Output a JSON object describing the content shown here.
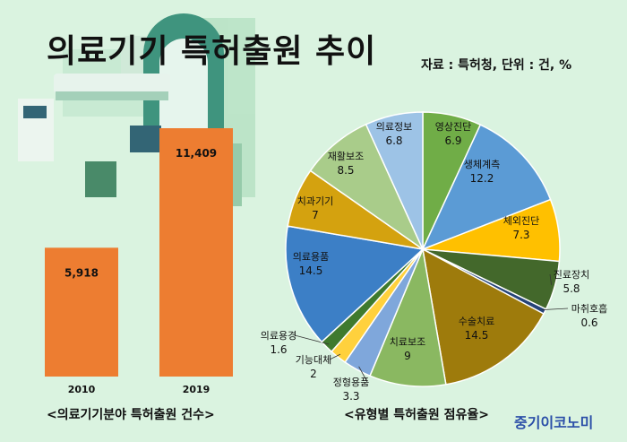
{
  "title": "의료기기 특허출원 추이",
  "source": "자료 : 특허청, 단위 : 건, %",
  "brand": "중기이코노미",
  "colors": {
    "background": "#daf3e0",
    "bar": "#ed7d31"
  },
  "chart_data": [
    {
      "type": "bar",
      "caption": "<의료기기분야 특허출원 건수>",
      "categories": [
        "2010",
        "2019"
      ],
      "values": [
        5918,
        11409
      ],
      "value_labels": [
        "5,918",
        "11,409"
      ],
      "ylim": [
        0,
        11409
      ],
      "grid": false
    },
    {
      "type": "pie",
      "caption": "<유형별 특허출원 점유율>",
      "labels": [
        "영상진단",
        "생체계측",
        "체외진단",
        "진료장치",
        "마취호흡",
        "수술치료",
        "치료보조",
        "정형용품",
        "기능대체",
        "의료용경",
        "의료용품",
        "치과기기",
        "재활보조",
        "의료정보"
      ],
      "values": [
        6.9,
        12.2,
        7.3,
        5.8,
        0.6,
        14.5,
        9,
        3.3,
        2,
        1.6,
        14.5,
        7,
        8.5,
        6.8
      ],
      "value_labels": [
        "6.9",
        "12.2",
        "7.3",
        "5.8",
        "0.6",
        "14.5",
        "9",
        "3.3",
        "2",
        "1.6",
        "14.5",
        "7",
        "8.5",
        "6.8"
      ],
      "colors": [
        "#70ad47",
        "#5b9bd5",
        "#ffc000",
        "#43682b",
        "#264478",
        "#9e7b0c",
        "#8ab861",
        "#7fa7db",
        "#ffd13d",
        "#3f7a2e",
        "#3c7fc6",
        "#d4a20f",
        "#a9cc8a",
        "#9dc3e6"
      ]
    }
  ]
}
